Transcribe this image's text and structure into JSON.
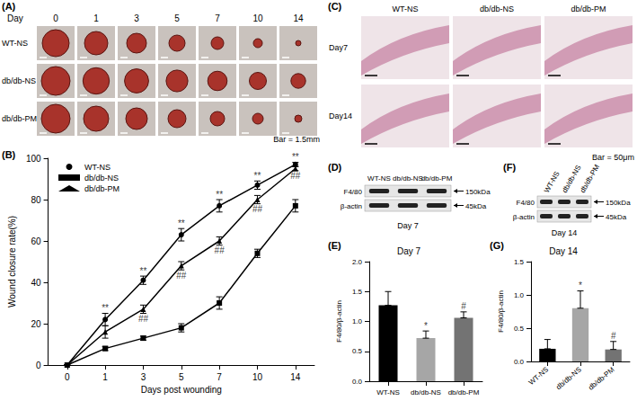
{
  "panels": {
    "A": {
      "label": "(A)",
      "header": "Day",
      "days": [
        0,
        1,
        3,
        5,
        7,
        10,
        14
      ],
      "rows": [
        "WT-NS",
        "db/db-NS",
        "db/db-PM"
      ],
      "scale_bar": "Bar = 1.5mm"
    },
    "C": {
      "label": "(C)",
      "columns": [
        "WT-NS",
        "db/db-NS",
        "db/db-PM"
      ],
      "rows": [
        "Day7",
        "Day14"
      ],
      "scale_bar": "Bar = 50μm"
    },
    "D": {
      "label": "(D)",
      "lanes": [
        "WT-NS",
        "db/db-NS",
        "db/db-PM"
      ],
      "bands": [
        {
          "name": "F4/80",
          "size": "150kDa"
        },
        {
          "name": "β-actin",
          "size": "45kDa"
        }
      ],
      "caption": "Day 7"
    },
    "F": {
      "label": "(F)",
      "lanes": [
        "WT-NS",
        "db/db-NS",
        "db/db-PM"
      ],
      "bands": [
        {
          "name": "F4/80",
          "size": "150kDa"
        },
        {
          "name": "β-actin",
          "size": "45kDa"
        }
      ],
      "caption": "Day 14"
    }
  },
  "chart_data": [
    {
      "label": "(B)",
      "type": "line",
      "x_label": "Days post wounding",
      "y_label": "Wound closure rate(%)",
      "categories": [
        "0",
        "1",
        "3",
        "5",
        "7",
        "10",
        "14"
      ],
      "series": [
        {
          "name": "WT-NS",
          "color": "#000000",
          "marker": "circle",
          "values": [
            0,
            22,
            41,
            63,
            77,
            87,
            97
          ],
          "errors": [
            0,
            3,
            2,
            3,
            3,
            2,
            1
          ],
          "marks": [
            null,
            "**",
            "**",
            "**",
            "**",
            "**",
            "**"
          ]
        },
        {
          "name": "db/db-NS",
          "color": "#000000",
          "marker": "square",
          "values": [
            0,
            8,
            13,
            18,
            30,
            54,
            77
          ],
          "errors": [
            0,
            1,
            1,
            2,
            3,
            2,
            3
          ],
          "marks": [
            null,
            null,
            null,
            null,
            null,
            null,
            null
          ]
        },
        {
          "name": "db/db-PM",
          "color": "#000000",
          "marker": "triangle",
          "values": [
            0,
            16,
            27,
            48,
            60,
            80,
            95
          ],
          "errors": [
            0,
            3,
            2,
            2,
            2,
            2,
            1
          ],
          "marks": [
            null,
            null,
            "##",
            "##",
            "##",
            "##",
            "##"
          ]
        }
      ],
      "ylim": [
        0,
        100
      ],
      "yticks": [
        0,
        20,
        40,
        60,
        80,
        100
      ],
      "legend": "upper left",
      "grid": false
    },
    {
      "label": "(E)",
      "type": "bar",
      "title": "Day 7",
      "y_label": "F4/80/β-actin",
      "categories": [
        "WT-NS",
        "db/db-NS",
        "db/db-PM"
      ],
      "values": [
        1.27,
        0.72,
        1.06
      ],
      "errors": [
        0.23,
        0.12,
        0.1
      ],
      "marks": [
        null,
        "*",
        "#"
      ],
      "colors": [
        "#000000",
        "#a6a6a6",
        "#737373"
      ],
      "ylim": [
        0,
        2
      ],
      "yticks": [
        {
          "value": 0,
          "label": "0.0"
        },
        {
          "value": 0.5,
          "label": "0.5"
        },
        {
          "value": 1,
          "label": "1.0"
        },
        {
          "value": 1.5,
          "label": "1.5"
        },
        {
          "value": 2,
          "label": "2.0"
        }
      ],
      "grid": false
    },
    {
      "label": "(G)",
      "type": "bar",
      "title": "Day 14",
      "y_label": "F4/80/β-actin",
      "categories": [
        "WT-NS",
        "db/db-NS",
        "db/db-PM"
      ],
      "values": [
        0.19,
        0.8,
        0.18
      ],
      "errors": [
        0.14,
        0.26,
        0.12
      ],
      "marks": [
        null,
        "*",
        "#"
      ],
      "colors": [
        "#000000",
        "#a6a6a6",
        "#737373"
      ],
      "ylim": [
        0,
        1.5
      ],
      "yticks": [
        {
          "value": 0,
          "label": "0.0"
        },
        {
          "value": 0.5,
          "label": "0.5"
        },
        {
          "value": 1,
          "label": "1.0"
        },
        {
          "value": 1.5,
          "label": "1.5"
        }
      ],
      "grid": false
    }
  ]
}
